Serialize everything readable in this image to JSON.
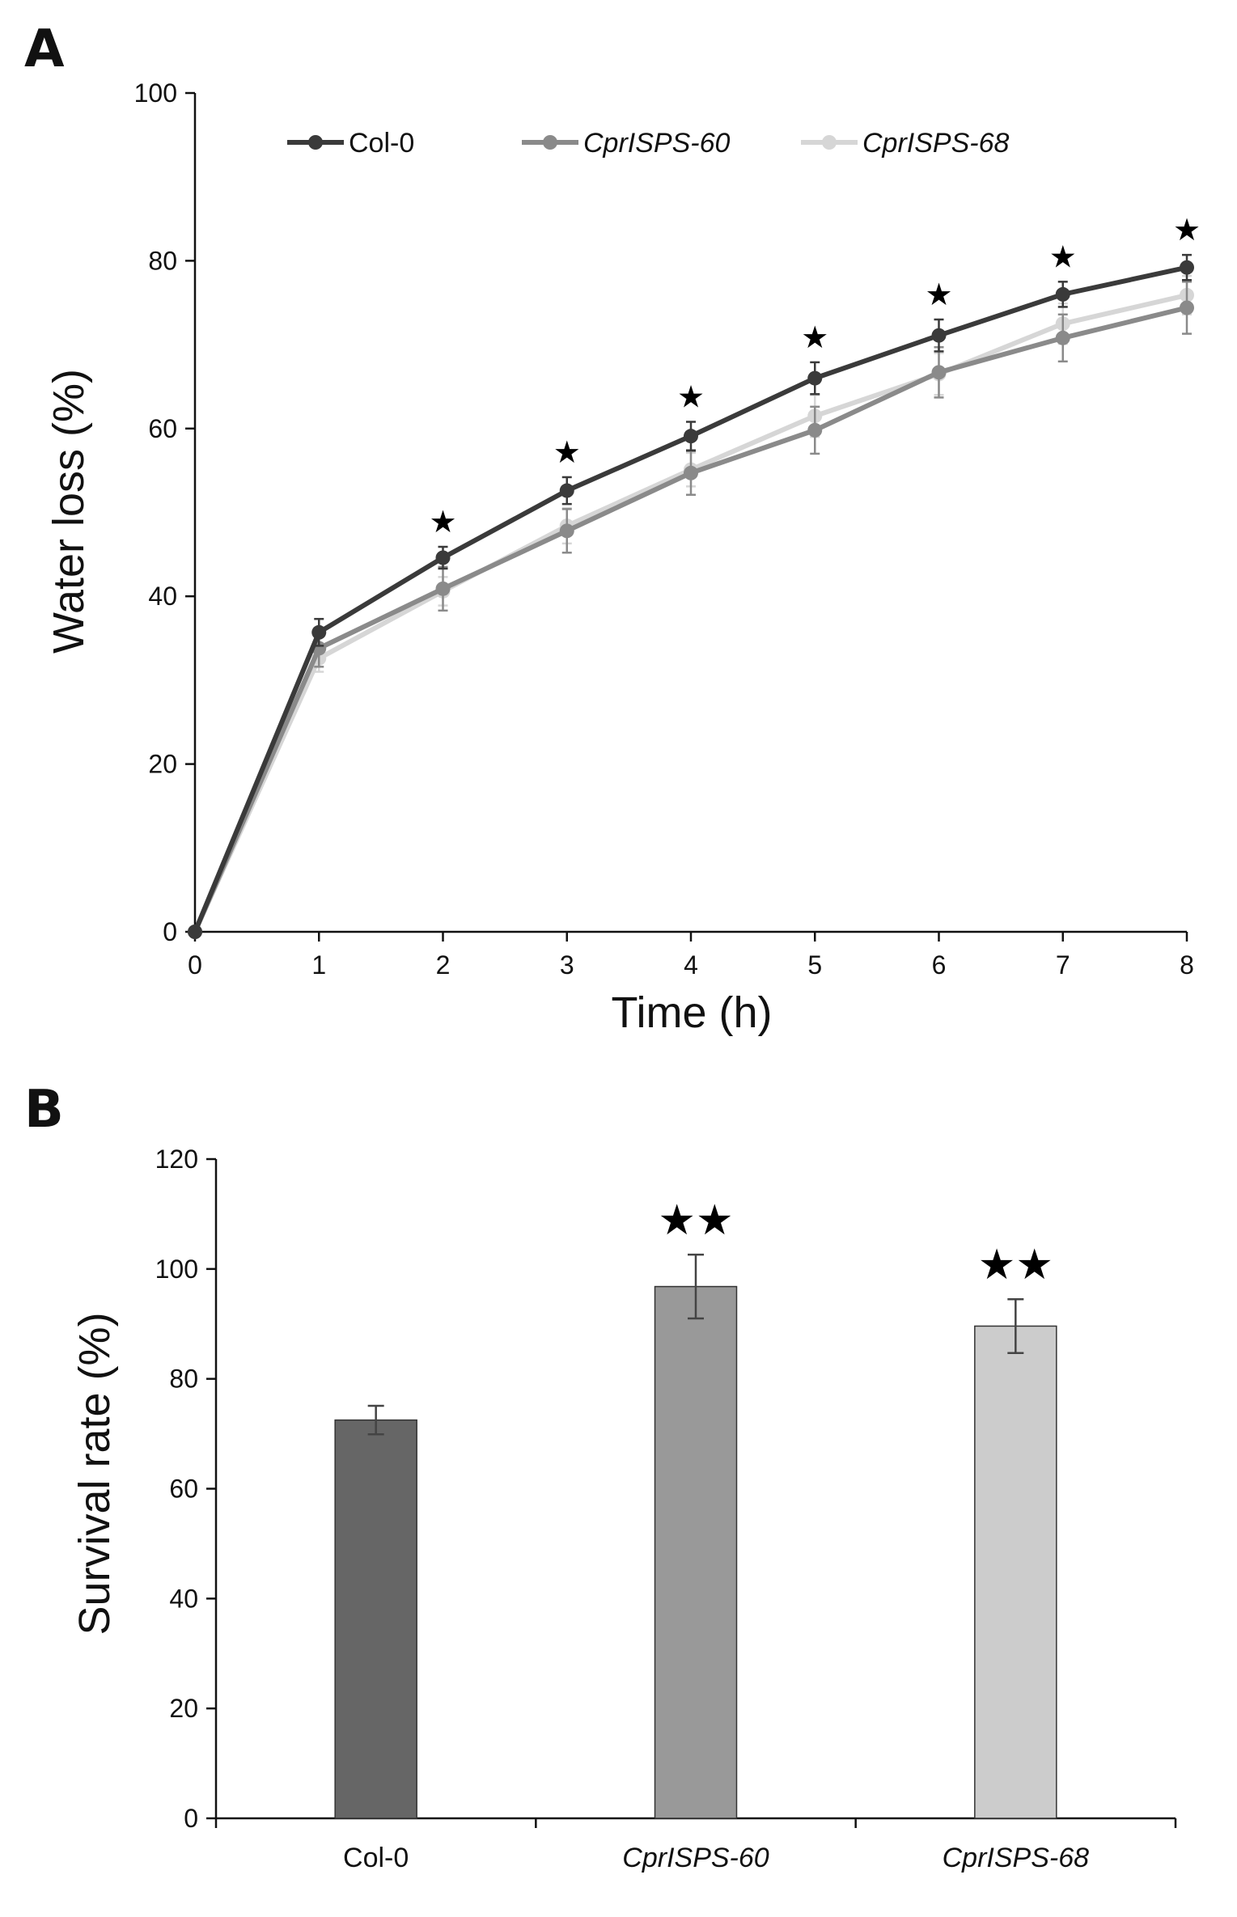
{
  "chart_data": [
    {
      "panel": "A",
      "type": "line",
      "xlabel": "Time (h)",
      "ylabel": "Water loss (%)",
      "x": [
        0,
        1,
        2,
        3,
        4,
        5,
        6,
        7,
        8
      ],
      "xlim": [
        0,
        8
      ],
      "ylim": [
        0,
        100
      ],
      "yticks": [
        0,
        20,
        40,
        60,
        80,
        100
      ],
      "grid": false,
      "legend": "top",
      "significance_marker": "★",
      "significance_x": [
        2,
        3,
        4,
        5,
        6,
        7,
        8
      ],
      "series": [
        {
          "name": "Col-0",
          "italic": false,
          "color": "#3a3a3a",
          "values": [
            0,
            35.7,
            44.6,
            52.6,
            59.1,
            66.0,
            71.1,
            76.0,
            79.2
          ],
          "errors": [
            0,
            1.6,
            1.3,
            1.6,
            1.7,
            1.9,
            1.9,
            1.5,
            1.5
          ]
        },
        {
          "name": "CprISPS-60",
          "italic": true,
          "color": "#8a8a8a",
          "values": [
            0,
            33.8,
            40.9,
            47.8,
            54.7,
            59.8,
            66.7,
            70.8,
            74.4
          ],
          "errors": [
            0,
            2.2,
            2.6,
            2.6,
            2.6,
            2.8,
            3.0,
            2.8,
            3.1
          ]
        },
        {
          "name": "CprISPS-68",
          "italic": true,
          "color": "#d6d6d6",
          "values": [
            0,
            32.6,
            40.6,
            48.4,
            55.1,
            61.5,
            66.5,
            72.5,
            75.9
          ],
          "errors": [
            0,
            1.6,
            1.7,
            2.1,
            2.0,
            2.5,
            2.5,
            2.4,
            2.3
          ]
        }
      ]
    },
    {
      "panel": "B",
      "type": "bar",
      "xlabel": "",
      "ylabel": "Survival rate (%)",
      "categories": [
        "Col-0",
        "CprISPS-60",
        "CprISPS-68"
      ],
      "categories_italic": [
        false,
        true,
        true
      ],
      "values": [
        72.5,
        96.8,
        89.6
      ],
      "errors": [
        2.6,
        5.8,
        4.9
      ],
      "colors": [
        "#666666",
        "#999999",
        "#cccccc"
      ],
      "significance": [
        "",
        "★★",
        "★★"
      ],
      "ylim": [
        0,
        120
      ],
      "yticks": [
        0,
        20,
        40,
        60,
        80,
        100,
        120
      ],
      "grid": false
    }
  ]
}
